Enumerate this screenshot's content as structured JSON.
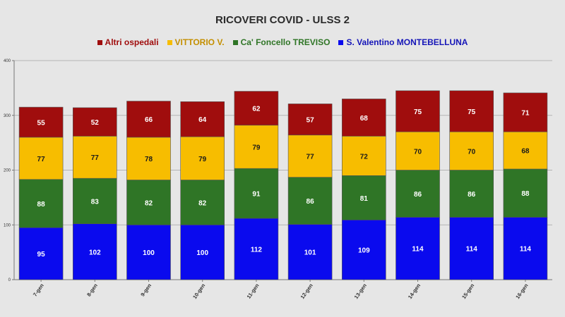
{
  "title": "RICOVERI COVID - ULSS 2",
  "chart_data": {
    "type": "bar",
    "stacked": true,
    "title": "RICOVERI COVID - ULSS 2",
    "xlabel": "",
    "ylabel": "",
    "ylim": [
      0,
      400
    ],
    "yticks": [
      "0",
      "100",
      "200",
      "300",
      "400"
    ],
    "grid": true,
    "legend_position": "top-center",
    "categories": [
      "7-gen",
      "8-gen",
      "9-gen",
      "10-gen",
      "11-gen",
      "12-gen",
      "13-gen",
      "14-gen",
      "15-gen",
      "16-gen"
    ],
    "series": [
      {
        "name": "S. Valentino MONTEBELLUNA",
        "color": "#0a0aee",
        "values": [
          95,
          102,
          100,
          100,
          112,
          101,
          109,
          114,
          114,
          114
        ]
      },
      {
        "name": "Ca' Foncello TREVISO",
        "color": "#2f7526",
        "values": [
          88,
          83,
          82,
          82,
          91,
          86,
          81,
          86,
          86,
          88
        ]
      },
      {
        "name": "VITTORIO V.",
        "color": "#f7bd00",
        "values": [
          77,
          77,
          78,
          79,
          79,
          77,
          72,
          70,
          70,
          68
        ]
      },
      {
        "name": "Altri ospedali",
        "color": "#a00d0d",
        "values": [
          55,
          52,
          66,
          64,
          62,
          57,
          68,
          75,
          75,
          71
        ]
      }
    ],
    "legend_order": [
      3,
      2,
      1,
      0
    ],
    "legend_text_colors": [
      "#a00d0d",
      "#c48f00",
      "#2f7526",
      "#1515b8"
    ]
  }
}
